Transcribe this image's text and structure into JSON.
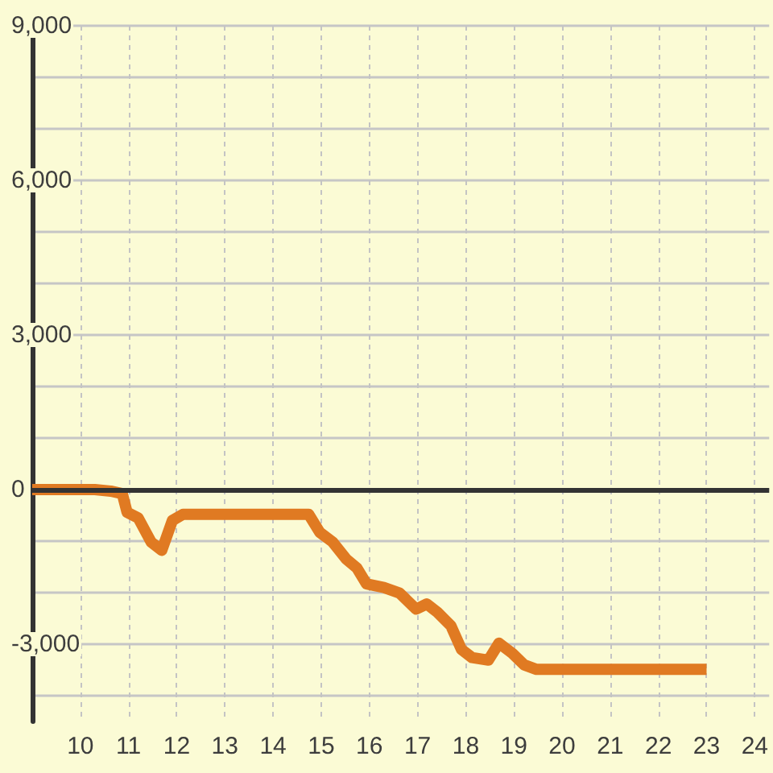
{
  "chart_data": {
    "type": "line",
    "x": [
      9,
      10.3,
      10.63,
      10.87,
      10.97,
      11.2,
      11.47,
      11.69,
      11.91,
      12.13,
      14.74,
      14.97,
      15.24,
      15.52,
      15.74,
      15.94,
      16.3,
      16.63,
      16.97,
      17.19,
      17.41,
      17.69,
      17.91,
      18.13,
      18.47,
      18.69,
      18.97,
      19.21,
      19.47,
      23
    ],
    "values": [
      0,
      0,
      -30,
      -80,
      -440,
      -550,
      -1020,
      -1180,
      -600,
      -480,
      -480,
      -830,
      -1020,
      -1350,
      -1520,
      -1830,
      -1900,
      -2010,
      -2320,
      -2220,
      -2380,
      -2640,
      -3100,
      -3260,
      -3310,
      -2980,
      -3180,
      -3400,
      -3490,
      -3490
    ],
    "color": "#e07a22",
    "marker": "none",
    "line_style": "solid",
    "xlim": [
      9,
      24.3
    ],
    "xticks": [
      10,
      11,
      12,
      13,
      14,
      15,
      16,
      17,
      18,
      19,
      20,
      21,
      22,
      23,
      24
    ],
    "ylim": [
      -4500,
      9000
    ],
    "yticks": [
      {
        "value": -4000,
        "label": null
      },
      {
        "value": -3000,
        "label": "-3,000"
      },
      {
        "value": -2000,
        "label": null
      },
      {
        "value": -1000,
        "label": null
      },
      0,
      {
        "value": 1000,
        "label": null
      },
      {
        "value": 2000,
        "label": null
      },
      {
        "value": 3000,
        "label": "3,000"
      },
      {
        "value": 4000,
        "label": null
      },
      {
        "value": 5000,
        "label": null
      },
      {
        "value": 6000,
        "label": "6,000"
      },
      {
        "value": 7000,
        "label": null
      },
      {
        "value": 8000,
        "label": null
      },
      {
        "value": 9000,
        "label": "9,000"
      }
    ],
    "grid": true,
    "ref_lines": [
      {
        "axis": "y",
        "value": 0,
        "color": "#333333"
      }
    ]
  }
}
